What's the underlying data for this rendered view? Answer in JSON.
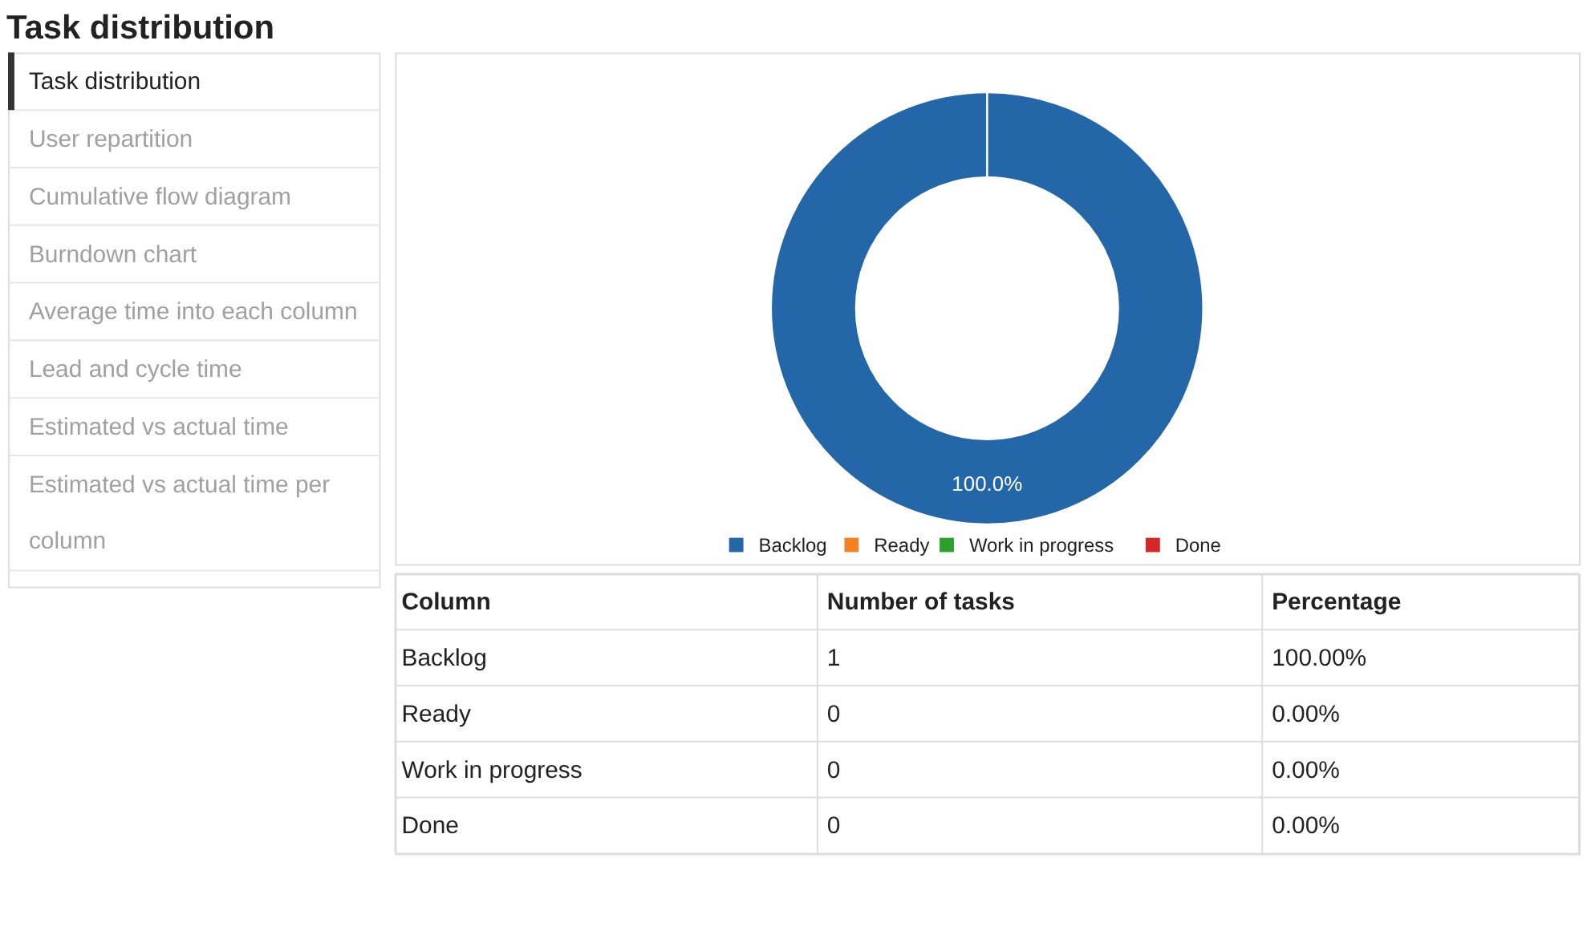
{
  "chart_data": [
    {
      "type": "other",
      "annotations": [
        "Task distribution",
        "User repartition",
        "Cumulative flow diagram",
        "Burndown chart",
        "Average time into each column",
        "Lead and cycle time",
        "Estimated vs actual time",
        "Estimated vs actual time per column"
      ]
    },
    {
      "type": "donut",
      "title": "Task distribution",
      "categories": [
        "Backlog",
        "Ready",
        "Work in progress",
        "Done"
      ],
      "values": [
        1,
        0,
        0,
        0
      ],
      "colors": [
        "#2467a8",
        "#f58220",
        "#2ca02c",
        "#d62728"
      ],
      "value_labels": [
        "100.0%",
        null,
        null,
        null
      ],
      "legend": "bottom",
      "annotations": [
        "Column",
        "Number of tasks",
        "Percentage",
        "Backlog",
        "1",
        "100.00%",
        "Ready",
        "0",
        "0.00%",
        "Work in progress",
        "0",
        "0.00%",
        "Done",
        "0",
        "0.00%"
      ]
    }
  ]
}
